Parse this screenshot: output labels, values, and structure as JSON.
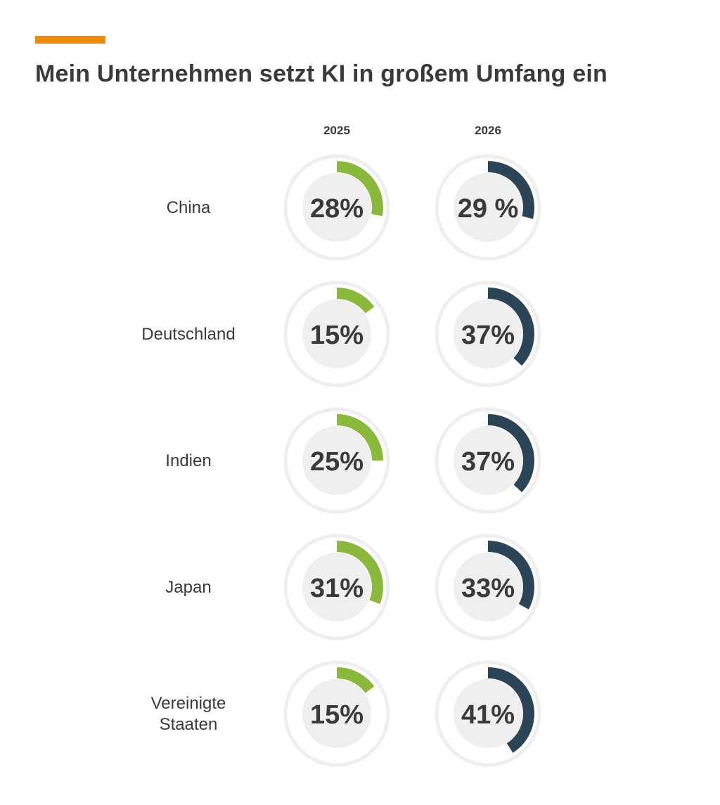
{
  "header": {
    "title": "Mein Unternehmen setzt KI in großem Umfang ein"
  },
  "colors": {
    "accent": "#f08a00",
    "series_2025": "#8ab83a",
    "series_2026": "#2b4557",
    "track": "#efefef",
    "text": "#3a3a3a"
  },
  "chart_data": {
    "type": "donut",
    "title": "Mein Unternehmen setzt KI in großem Umfang ein",
    "categories": [
      "China",
      "Deutschland",
      "Indien",
      "Japan",
      "Vereinigte Staaten"
    ],
    "category_lines": [
      [
        "China"
      ],
      [
        "Deutschland"
      ],
      [
        "Indien"
      ],
      [
        "Japan"
      ],
      [
        "Vereinigte",
        "Staaten"
      ]
    ],
    "series": [
      {
        "name": "2025",
        "values": [
          28,
          15,
          25,
          31,
          15
        ],
        "labels": [
          "28%",
          "15%",
          "25%",
          "31%",
          "15%"
        ]
      },
      {
        "name": "2026",
        "values": [
          29,
          37,
          37,
          33,
          41
        ],
        "labels": [
          "29 %",
          "37%",
          "37%",
          "33%",
          "41%"
        ]
      }
    ],
    "unit": "%"
  }
}
